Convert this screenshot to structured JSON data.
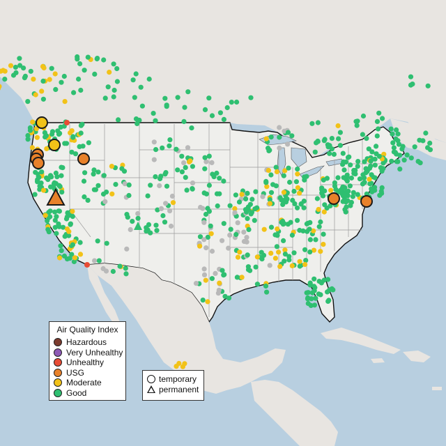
{
  "colors": {
    "ocean": "#b8cfe0",
    "land": "#ececea",
    "canada_land": "#e6e3df",
    "border": "#111111",
    "state_lines": "#9a9a9a",
    "good": "#2fbf71",
    "moderate": "#f2c218",
    "usg": "#e8812a",
    "unhealthy": "#e84c35",
    "very_unhealthy": "#8d5ab5",
    "hazardous": "#7b3b2e",
    "no_data": "#b9b9b9"
  },
  "aqi_legend": {
    "title": "Air Quality Index",
    "items": [
      {
        "label": "Hazardous",
        "color": "#7b3b2e"
      },
      {
        "label": "Very Unhealthy",
        "color": "#8d5ab5"
      },
      {
        "label": "Unhealthy",
        "color": "#e84c35"
      },
      {
        "label": "USG",
        "color": "#e8812a"
      },
      {
        "label": "Moderate",
        "color": "#f2c218"
      },
      {
        "label": "Good",
        "color": "#2fbf71"
      }
    ]
  },
  "monitor_legend": {
    "items": [
      {
        "label": "temporary",
        "shape": "circle"
      },
      {
        "label": "permanent",
        "shape": "triangle"
      }
    ]
  }
}
